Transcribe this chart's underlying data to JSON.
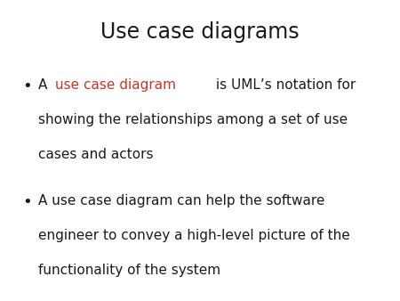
{
  "title": "Use case diagrams",
  "title_fontsize": 17,
  "title_color": "#1a1a1a",
  "background_color": "#ffffff",
  "bullet_color": "#1a1a1a",
  "red_color": "#c0392b",
  "bullet_fontsize": 11,
  "bullet1_line1": "A ",
  "bullet1_colored": "use case diagram",
  "bullet1_rest_lines": " is UML’s notation for\nshowing the relationships among a set of use\ncases and actors",
  "bullet2_text": "A use case diagram can help the software\nengineer to convey a high-level picture of the\nfunctionality of the system"
}
